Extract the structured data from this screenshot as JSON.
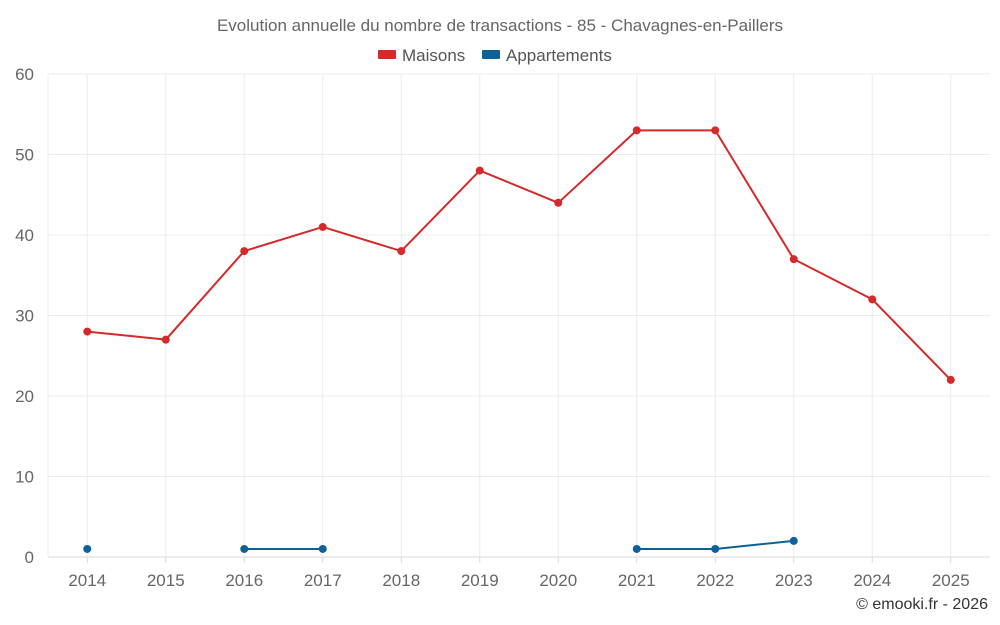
{
  "chart_data": {
    "type": "line",
    "title": "Evolution annuelle du nombre de transactions - 85 - Chavagnes-en-Paillers",
    "categories": [
      "2014",
      "2015",
      "2016",
      "2017",
      "2018",
      "2019",
      "2020",
      "2021",
      "2022",
      "2023",
      "2024",
      "2025"
    ],
    "series": [
      {
        "name": "Maisons",
        "color": "#d32a2a",
        "values": [
          28,
          27,
          38,
          41,
          38,
          48,
          44,
          53,
          53,
          37,
          32,
          22
        ]
      },
      {
        "name": "Appartements",
        "color": "#0d6199",
        "values": [
          1,
          null,
          1,
          1,
          null,
          null,
          null,
          1,
          1,
          2,
          null,
          null
        ]
      }
    ],
    "ylim": [
      0,
      60
    ],
    "yticks": [
      0,
      10,
      20,
      30,
      40,
      50,
      60
    ],
    "xlabel": "",
    "ylabel": "",
    "legend_position": "top-center",
    "grid": true,
    "credit": "© emooki.fr - 2026"
  }
}
